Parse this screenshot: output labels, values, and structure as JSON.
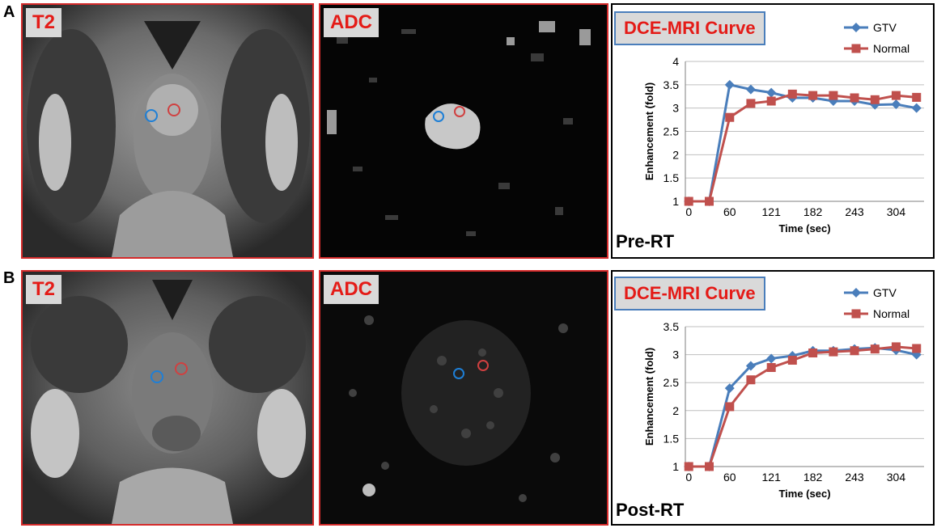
{
  "rows": [
    {
      "letter": "A",
      "t2_label": "T2",
      "adc_label": "ADC",
      "chart_tag": "DCE-MRI Curve",
      "phase_label": "Pre-RT"
    },
    {
      "letter": "B",
      "t2_label": "T2",
      "adc_label": "ADC",
      "chart_tag": "DCE-MRI Curve",
      "phase_label": "Post-RT"
    }
  ],
  "colors": {
    "gtv": "#4a7ebb",
    "normal": "#c0504d",
    "roi_blue": "#1e7fd6",
    "roi_red": "#d04040"
  },
  "chart_data": [
    {
      "type": "line",
      "xlabel": "Time (sec)",
      "ylabel": "Enhancement (fold)",
      "ylim": [
        1,
        4
      ],
      "yticks": [
        "1",
        "1.5",
        "2",
        "2.5",
        "3",
        "3.5",
        "4"
      ],
      "xtick_labels": [
        "0",
        "60",
        "121",
        "182",
        "243",
        "304"
      ],
      "xlim": [
        -5,
        345
      ],
      "grid": true,
      "legend": "top-right",
      "series": [
        {
          "name": "GTV",
          "marker": "diamond",
          "x": [
            0,
            30,
            60,
            91,
            121,
            152,
            182,
            212,
            243,
            273,
            304,
            334
          ],
          "values": [
            1,
            1,
            3.5,
            3.4,
            3.33,
            3.22,
            3.22,
            3.15,
            3.15,
            3.07,
            3.08,
            3.0
          ]
        },
        {
          "name": "Normal",
          "marker": "square",
          "x": [
            0,
            30,
            60,
            91,
            121,
            152,
            182,
            212,
            243,
            273,
            304,
            334
          ],
          "values": [
            1,
            1,
            2.8,
            3.1,
            3.15,
            3.3,
            3.27,
            3.27,
            3.22,
            3.18,
            3.27,
            3.23
          ]
        }
      ]
    },
    {
      "type": "line",
      "xlabel": "Time (sec)",
      "ylabel": "Enhancement (fold)",
      "ylim": [
        1,
        3.5
      ],
      "yticks": [
        "1",
        "1.5",
        "2",
        "2.5",
        "3",
        "3.5"
      ],
      "xtick_labels": [
        "0",
        "60",
        "121",
        "182",
        "243",
        "304"
      ],
      "xlim": [
        -5,
        345
      ],
      "grid": true,
      "legend": "top-right",
      "series": [
        {
          "name": "GTV",
          "marker": "diamond",
          "x": [
            0,
            30,
            60,
            91,
            121,
            152,
            182,
            212,
            243,
            273,
            304,
            334
          ],
          "values": [
            1,
            1,
            2.4,
            2.8,
            2.93,
            2.98,
            3.07,
            3.07,
            3.1,
            3.12,
            3.08,
            3.0
          ]
        },
        {
          "name": "Normal",
          "marker": "square",
          "x": [
            0,
            30,
            60,
            91,
            121,
            152,
            182,
            212,
            243,
            273,
            304,
            334
          ],
          "values": [
            1,
            1,
            2.07,
            2.55,
            2.77,
            2.9,
            3.03,
            3.05,
            3.07,
            3.1,
            3.14,
            3.11
          ]
        }
      ]
    }
  ]
}
